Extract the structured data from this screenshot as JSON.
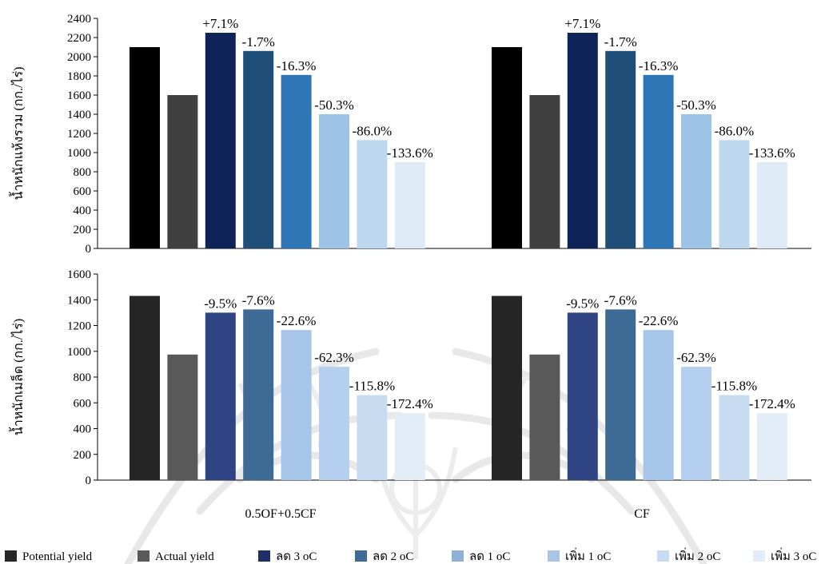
{
  "chart_data": [
    {
      "type": "bar",
      "ylabel": "น้ำหนักแห้งรวม (กก./ไร่)",
      "ylim": [
        0,
        2400
      ],
      "yticks": [
        0,
        200,
        400,
        600,
        800,
        1000,
        1200,
        1400,
        1600,
        1800,
        2000,
        2200,
        2400
      ],
      "grid": false,
      "categories": [
        "0.5OF+0.5CF",
        "CF"
      ],
      "series": [
        {
          "name": "Potential yield",
          "color": "#000000",
          "values": [
            2100,
            2100
          ],
          "labels": [
            "",
            ""
          ]
        },
        {
          "name": "Actual yield",
          "color": "#404040",
          "values": [
            1600,
            1600
          ],
          "labels": [
            "",
            ""
          ]
        },
        {
          "name": "ลด 3 oC",
          "color": "#0e2458",
          "values": [
            2250,
            2250
          ],
          "labels": [
            "+7.1%",
            "+7.1%"
          ]
        },
        {
          "name": "ลด 2 oC",
          "color": "#1f4e79",
          "values": [
            2060,
            2060
          ],
          "labels": [
            "-1.7%",
            "-1.7%"
          ]
        },
        {
          "name": "ลด 1 oC",
          "color": "#2e75b6",
          "values": [
            1810,
            1810
          ],
          "labels": [
            "-16.3%",
            "-16.3%"
          ]
        },
        {
          "name": "เพิ่ม 1 oC",
          "color": "#9dc3e6",
          "values": [
            1400,
            1400
          ],
          "labels": [
            "-50.3%",
            "-50.3%"
          ]
        },
        {
          "name": "เพิ่ม 2 oC",
          "color": "#bdd7ee",
          "values": [
            1130,
            1130
          ],
          "labels": [
            "-86.0%",
            "-86.0%"
          ]
        },
        {
          "name": "เพิ่ม 3 oC",
          "color": "#deebf7",
          "values": [
            900,
            900
          ],
          "labels": [
            "-133.6%",
            "-133.6%"
          ]
        }
      ]
    },
    {
      "type": "bar",
      "ylabel": "น้ำหนักเมล็ด (กก./ไร่)",
      "ylim": [
        0,
        1600
      ],
      "yticks": [
        0,
        200,
        400,
        600,
        800,
        1000,
        1200,
        1400,
        1600
      ],
      "grid": false,
      "categories": [
        "0.5OF+0.5CF",
        "CF"
      ],
      "series": [
        {
          "name": "Potential yield",
          "color": "#262626",
          "values": [
            1430,
            1430
          ],
          "labels": [
            "",
            ""
          ]
        },
        {
          "name": "Actual yield",
          "color": "#595959",
          "values": [
            975,
            975
          ],
          "labels": [
            "",
            ""
          ]
        },
        {
          "name": "ลด 3 oC",
          "color": "#2f4482",
          "values": [
            1300,
            1300
          ],
          "labels": [
            "-9.5%",
            "-9.5%"
          ]
        },
        {
          "name": "ลด 2 oC",
          "color": "#3e6a96",
          "values": [
            1325,
            1325
          ],
          "labels": [
            "-7.6%",
            "-7.6%"
          ]
        },
        {
          "name": "ลด 1 oC",
          "color": "#a6c5e8",
          "values": [
            1165,
            1165
          ],
          "labels": [
            "-22.6%",
            "-22.6%"
          ]
        },
        {
          "name": "เพิ่ม 1 oC",
          "color": "#b4d0ee",
          "values": [
            880,
            880
          ],
          "labels": [
            "-62.3%",
            "-62.3%"
          ]
        },
        {
          "name": "เพิ่ม 2 oC",
          "color": "#c8dcf1",
          "values": [
            660,
            660
          ],
          "labels": [
            "-115.8%",
            "-115.8%"
          ]
        },
        {
          "name": "เพิ่ม 3 oC",
          "color": "#e3edf7",
          "values": [
            520,
            520
          ],
          "labels": [
            "-172.4%",
            "-172.4%"
          ]
        }
      ]
    }
  ],
  "legend": {
    "position": "bottom",
    "items": [
      {
        "label": "Potential yield",
        "color": "#262626"
      },
      {
        "label": "Actual yield",
        "color": "#595959"
      },
      {
        "label": "ลด 3 oC",
        "color": "#1c2f66"
      },
      {
        "label": "ลด 2 oC",
        "color": "#3e6a96"
      },
      {
        "label": "ลด 1 oC",
        "color": "#8eb0d8"
      },
      {
        "label": "เพิ่ม 1 oC",
        "color": "#a6c5e8"
      },
      {
        "label": "เพิ่ม 2 oC",
        "color": "#c8dcf1"
      },
      {
        "label": "เพิ่ม 3 oC",
        "color": "#e3edf7"
      }
    ]
  },
  "colors": {
    "axis": "#000000",
    "text": "#000000",
    "watermark": "#e6e6e6"
  }
}
